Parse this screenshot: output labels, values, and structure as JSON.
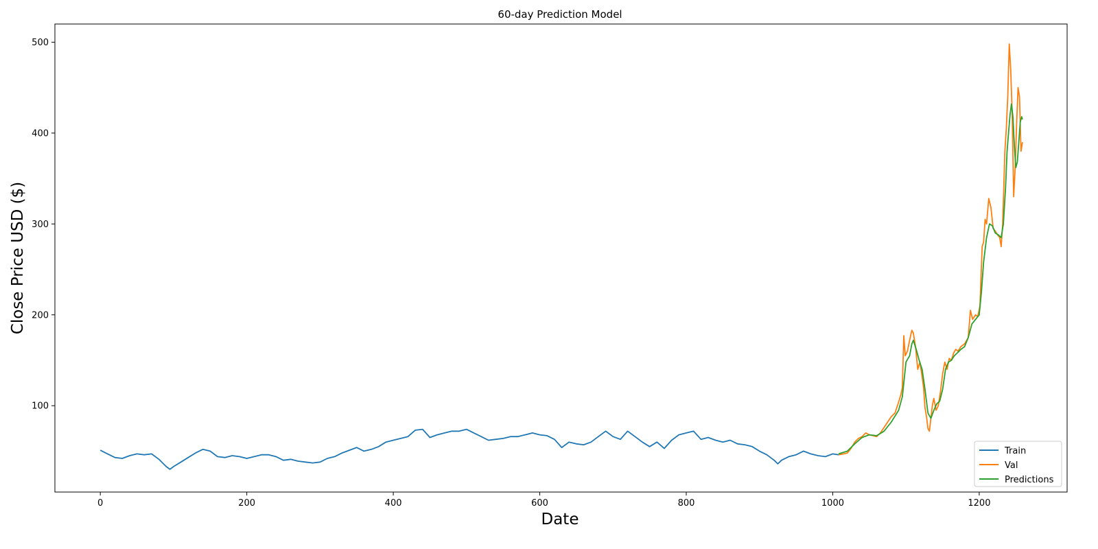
{
  "chart_data": {
    "type": "line",
    "title": "60-day Prediction Model",
    "xlabel": "Date",
    "ylabel": "Close Price USD ($)",
    "xlim": [
      -62,
      1320
    ],
    "ylim": [
      5,
      520
    ],
    "x_ticks": [
      0,
      200,
      400,
      600,
      800,
      1000,
      1200
    ],
    "y_ticks": [
      100,
      200,
      300,
      400,
      500
    ],
    "grid": false,
    "legend_position": "bottom-right",
    "series": [
      {
        "name": "Train",
        "color": "#1f77b4",
        "points": [
          [
            0,
            51
          ],
          [
            10,
            47
          ],
          [
            20,
            43
          ],
          [
            30,
            42
          ],
          [
            40,
            45
          ],
          [
            50,
            47
          ],
          [
            60,
            46
          ],
          [
            70,
            47
          ],
          [
            80,
            41
          ],
          [
            90,
            33
          ],
          [
            95,
            30
          ],
          [
            100,
            33
          ],
          [
            110,
            38
          ],
          [
            120,
            43
          ],
          [
            130,
            48
          ],
          [
            140,
            52
          ],
          [
            150,
            50
          ],
          [
            160,
            44
          ],
          [
            170,
            43
          ],
          [
            180,
            45
          ],
          [
            190,
            44
          ],
          [
            200,
            42
          ],
          [
            210,
            44
          ],
          [
            220,
            46
          ],
          [
            230,
            46
          ],
          [
            240,
            44
          ],
          [
            250,
            40
          ],
          [
            260,
            41
          ],
          [
            270,
            39
          ],
          [
            280,
            38
          ],
          [
            290,
            37
          ],
          [
            300,
            38
          ],
          [
            310,
            42
          ],
          [
            320,
            44
          ],
          [
            330,
            48
          ],
          [
            340,
            51
          ],
          [
            350,
            54
          ],
          [
            360,
            50
          ],
          [
            370,
            52
          ],
          [
            380,
            55
          ],
          [
            390,
            60
          ],
          [
            400,
            62
          ],
          [
            410,
            64
          ],
          [
            420,
            66
          ],
          [
            430,
            73
          ],
          [
            440,
            74
          ],
          [
            450,
            65
          ],
          [
            460,
            68
          ],
          [
            470,
            70
          ],
          [
            480,
            72
          ],
          [
            490,
            72
          ],
          [
            500,
            74
          ],
          [
            510,
            70
          ],
          [
            520,
            66
          ],
          [
            530,
            62
          ],
          [
            540,
            63
          ],
          [
            550,
            64
          ],
          [
            560,
            66
          ],
          [
            570,
            66
          ],
          [
            580,
            68
          ],
          [
            590,
            70
          ],
          [
            600,
            68
          ],
          [
            610,
            67
          ],
          [
            620,
            63
          ],
          [
            630,
            54
          ],
          [
            640,
            60
          ],
          [
            650,
            58
          ],
          [
            660,
            57
          ],
          [
            670,
            60
          ],
          [
            680,
            66
          ],
          [
            690,
            72
          ],
          [
            700,
            66
          ],
          [
            710,
            63
          ],
          [
            720,
            72
          ],
          [
            730,
            66
          ],
          [
            740,
            60
          ],
          [
            750,
            55
          ],
          [
            760,
            60
          ],
          [
            770,
            53
          ],
          [
            780,
            62
          ],
          [
            790,
            68
          ],
          [
            800,
            70
          ],
          [
            810,
            72
          ],
          [
            820,
            63
          ],
          [
            830,
            65
          ],
          [
            840,
            62
          ],
          [
            850,
            60
          ],
          [
            860,
            62
          ],
          [
            870,
            58
          ],
          [
            880,
            57
          ],
          [
            890,
            55
          ],
          [
            900,
            50
          ],
          [
            910,
            46
          ],
          [
            920,
            40
          ],
          [
            925,
            36
          ],
          [
            930,
            40
          ],
          [
            940,
            44
          ],
          [
            950,
            46
          ],
          [
            960,
            50
          ],
          [
            970,
            47
          ],
          [
            980,
            45
          ],
          [
            990,
            44
          ],
          [
            1000,
            47
          ],
          [
            1008,
            46
          ]
        ]
      },
      {
        "name": "Val",
        "color": "#ff7f0e",
        "points": [
          [
            1008,
            46
          ],
          [
            1015,
            47
          ],
          [
            1020,
            48
          ],
          [
            1025,
            53
          ],
          [
            1030,
            60
          ],
          [
            1035,
            64
          ],
          [
            1040,
            66
          ],
          [
            1045,
            70
          ],
          [
            1050,
            68
          ],
          [
            1055,
            67
          ],
          [
            1060,
            66
          ],
          [
            1065,
            70
          ],
          [
            1070,
            76
          ],
          [
            1075,
            82
          ],
          [
            1080,
            88
          ],
          [
            1085,
            92
          ],
          [
            1090,
            104
          ],
          [
            1093,
            112
          ],
          [
            1095,
            120
          ],
          [
            1097,
            177
          ],
          [
            1099,
            155
          ],
          [
            1102,
            160
          ],
          [
            1105,
            172
          ],
          [
            1108,
            183
          ],
          [
            1110,
            180
          ],
          [
            1113,
            165
          ],
          [
            1116,
            140
          ],
          [
            1119,
            148
          ],
          [
            1122,
            132
          ],
          [
            1124,
            120
          ],
          [
            1126,
            98
          ],
          [
            1128,
            88
          ],
          [
            1130,
            75
          ],
          [
            1132,
            72
          ],
          [
            1134,
            86
          ],
          [
            1136,
            100
          ],
          [
            1138,
            108
          ],
          [
            1141,
            95
          ],
          [
            1144,
            100
          ],
          [
            1147,
            115
          ],
          [
            1150,
            135
          ],
          [
            1153,
            148
          ],
          [
            1156,
            140
          ],
          [
            1159,
            152
          ],
          [
            1162,
            150
          ],
          [
            1165,
            158
          ],
          [
            1168,
            162
          ],
          [
            1171,
            160
          ],
          [
            1175,
            165
          ],
          [
            1180,
            168
          ],
          [
            1185,
            175
          ],
          [
            1188,
            205
          ],
          [
            1191,
            195
          ],
          [
            1195,
            200
          ],
          [
            1198,
            198
          ],
          [
            1201,
            210
          ],
          [
            1204,
            275
          ],
          [
            1206,
            280
          ],
          [
            1208,
            305
          ],
          [
            1210,
            300
          ],
          [
            1213,
            328
          ],
          [
            1216,
            318
          ],
          [
            1219,
            295
          ],
          [
            1222,
            292
          ],
          [
            1225,
            288
          ],
          [
            1228,
            285
          ],
          [
            1230,
            275
          ],
          [
            1232,
            300
          ],
          [
            1235,
            380
          ],
          [
            1237,
            405
          ],
          [
            1239,
            440
          ],
          [
            1241,
            498
          ],
          [
            1243,
            470
          ],
          [
            1245,
            420
          ],
          [
            1247,
            330
          ],
          [
            1249,
            360
          ],
          [
            1251,
            410
          ],
          [
            1253,
            450
          ],
          [
            1255,
            440
          ],
          [
            1257,
            380
          ],
          [
            1259,
            390
          ]
        ]
      },
      {
        "name": "Predictions",
        "color": "#2ca02c",
        "points": [
          [
            1008,
            47
          ],
          [
            1020,
            50
          ],
          [
            1030,
            58
          ],
          [
            1040,
            65
          ],
          [
            1050,
            68
          ],
          [
            1060,
            67
          ],
          [
            1070,
            72
          ],
          [
            1080,
            82
          ],
          [
            1090,
            95
          ],
          [
            1095,
            110
          ],
          [
            1100,
            148
          ],
          [
            1105,
            155
          ],
          [
            1108,
            168
          ],
          [
            1110,
            172
          ],
          [
            1114,
            162
          ],
          [
            1118,
            150
          ],
          [
            1122,
            140
          ],
          [
            1126,
            118
          ],
          [
            1130,
            92
          ],
          [
            1134,
            86
          ],
          [
            1138,
            95
          ],
          [
            1142,
            102
          ],
          [
            1146,
            105
          ],
          [
            1150,
            118
          ],
          [
            1154,
            140
          ],
          [
            1158,
            148
          ],
          [
            1162,
            150
          ],
          [
            1166,
            155
          ],
          [
            1170,
            158
          ],
          [
            1175,
            162
          ],
          [
            1180,
            165
          ],
          [
            1185,
            175
          ],
          [
            1190,
            190
          ],
          [
            1195,
            195
          ],
          [
            1200,
            200
          ],
          [
            1203,
            225
          ],
          [
            1206,
            258
          ],
          [
            1210,
            285
          ],
          [
            1214,
            300
          ],
          [
            1218,
            298
          ],
          [
            1222,
            290
          ],
          [
            1226,
            288
          ],
          [
            1230,
            285
          ],
          [
            1233,
            300
          ],
          [
            1236,
            340
          ],
          [
            1238,
            380
          ],
          [
            1240,
            400
          ],
          [
            1242,
            420
          ],
          [
            1244,
            432
          ],
          [
            1246,
            418
          ],
          [
            1248,
            385
          ],
          [
            1250,
            362
          ],
          [
            1252,
            368
          ],
          [
            1254,
            390
          ],
          [
            1256,
            412
          ],
          [
            1258,
            418
          ],
          [
            1259,
            415
          ]
        ]
      }
    ]
  }
}
